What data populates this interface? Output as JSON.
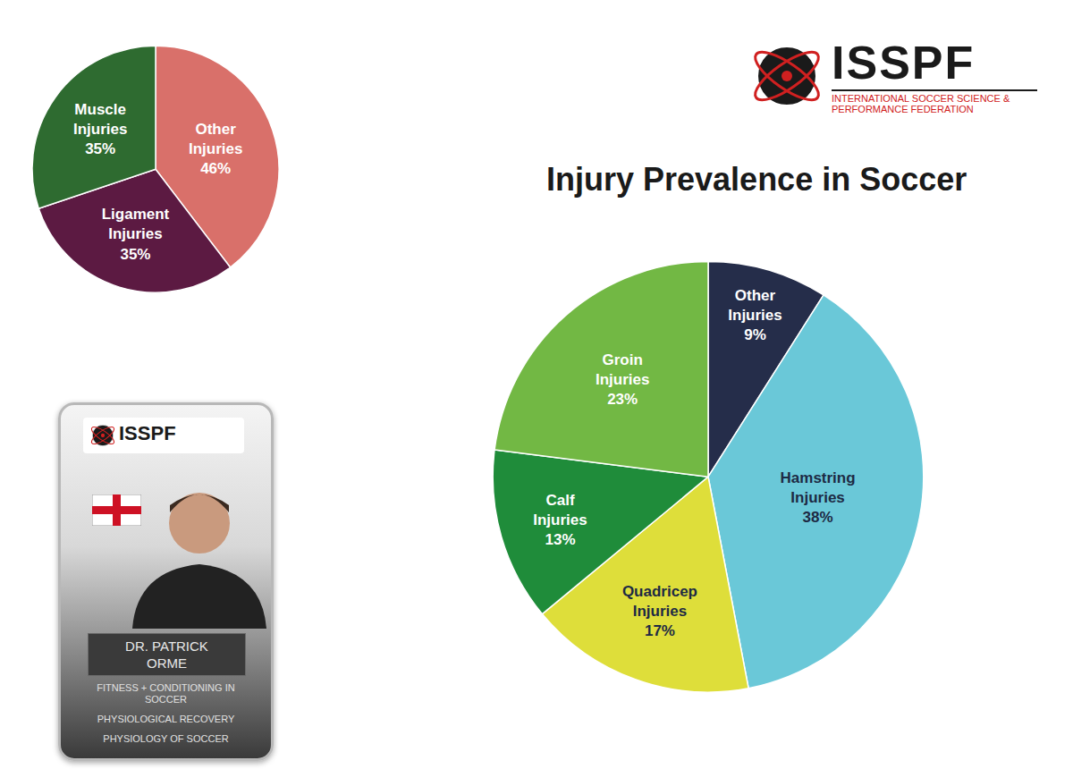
{
  "title": "Injury Prevalence in Soccer",
  "logo": {
    "text": "ISSPF",
    "subtitle": "INTERNATIONAL SOCCER SCIENCE & PERFORMANCE FEDERATION"
  },
  "card": {
    "logo_text": "ISSPF",
    "name": "DR. PATRICK ORME",
    "topics": [
      "FITNESS + CONDITIONING IN SOCCER",
      "PHYSIOLOGICAL RECOVERY",
      "PHYSIOLOGY OF SOCCER"
    ]
  },
  "chart_data": [
    {
      "type": "pie",
      "categories": [
        "Other Injuries",
        "Ligament Injuries",
        "Muscle Injuries"
      ],
      "values": [
        46,
        35,
        35
      ],
      "value_labels": [
        "46%",
        "35%",
        "35%"
      ],
      "colors": [
        "#d9706a",
        "#5c1a42",
        "#2e6b30"
      ],
      "data_labels": true
    },
    {
      "type": "pie",
      "categories": [
        "Other Injuries",
        "Hamstring Injuries",
        "Quadricep Injuries",
        "Calf Injuries",
        "Groin Injuries"
      ],
      "values": [
        9,
        38,
        17,
        13,
        23
      ],
      "value_labels": [
        "9%",
        "38%",
        "17%",
        "13%",
        "23%"
      ],
      "colors": [
        "#252d4a",
        "#6ac8d8",
        "#dede3a",
        "#1f8c3a",
        "#72b844"
      ],
      "data_labels": true
    }
  ]
}
